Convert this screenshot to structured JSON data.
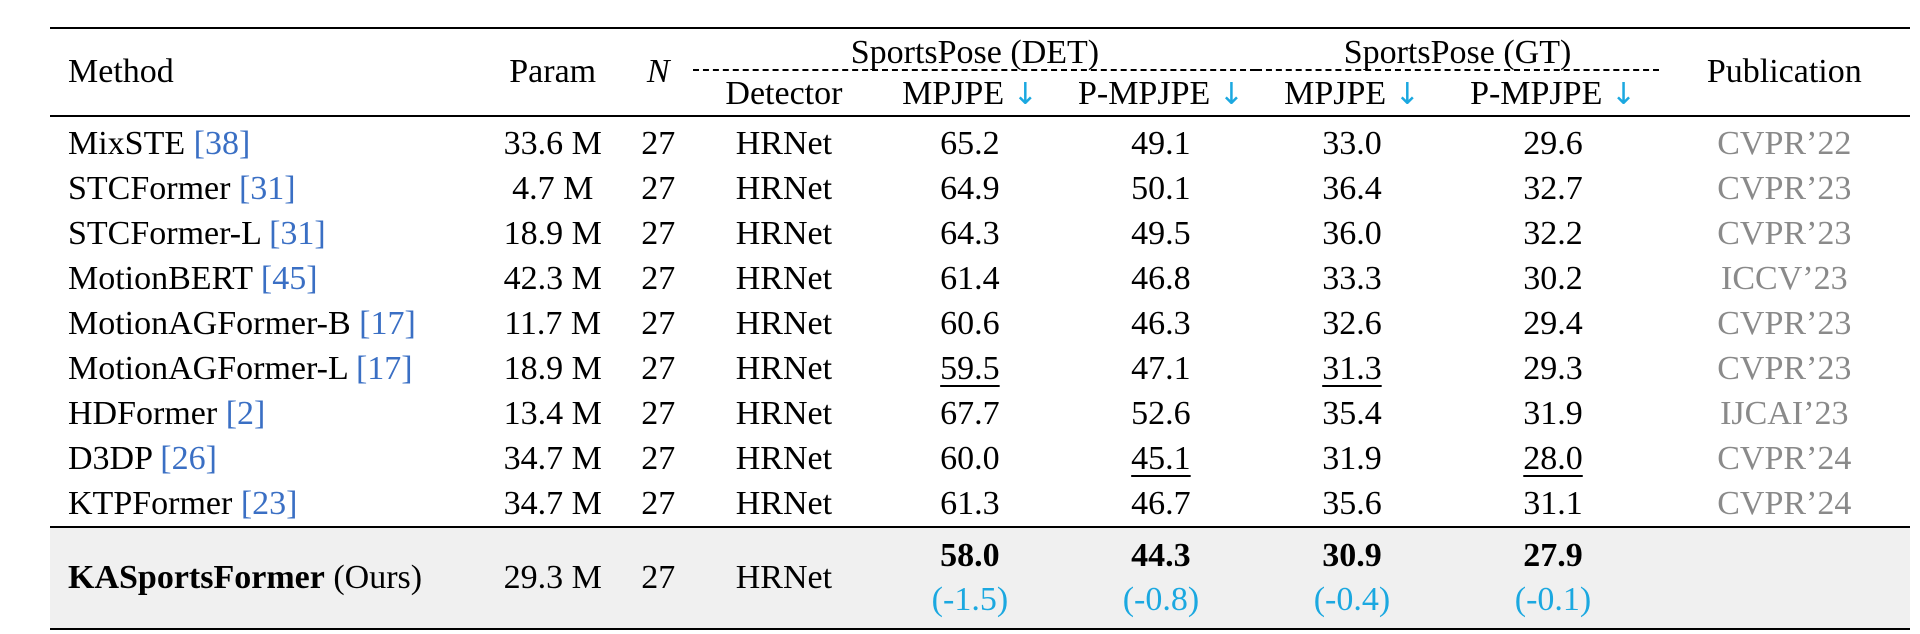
{
  "header": {
    "method": "Method",
    "param": "Param",
    "n": "N",
    "group_det": "SportsPose (DET)",
    "group_gt": "SportsPose (GT)",
    "publication": "Publication",
    "detector": "Detector",
    "mpjpe": "MPJPE",
    "pmpjpe": "P-MPJPE",
    "arrow": "↓"
  },
  "rows": [
    {
      "name": "MixSTE ",
      "ref": "[38]",
      "param": "33.6 M",
      "n": "27",
      "detector": "HRNet",
      "det_mpjpe": "65.2",
      "det_pmpjpe": "49.1",
      "gt_mpjpe": "33.0",
      "gt_pmpjpe": "29.6",
      "pub": "CVPR’22"
    },
    {
      "name": "STCFormer ",
      "ref": "[31]",
      "param": "4.7 M",
      "n": "27",
      "detector": "HRNet",
      "det_mpjpe": "64.9",
      "det_pmpjpe": "50.1",
      "gt_mpjpe": "36.4",
      "gt_pmpjpe": "32.7",
      "pub": "CVPR’23"
    },
    {
      "name": "STCFormer-L ",
      "ref": "[31]",
      "param": "18.9 M",
      "n": "27",
      "detector": "HRNet",
      "det_mpjpe": "64.3",
      "det_pmpjpe": "49.5",
      "gt_mpjpe": "36.0",
      "gt_pmpjpe": "32.2",
      "pub": "CVPR’23"
    },
    {
      "name": "MotionBERT ",
      "ref": "[45]",
      "param": "42.3 M",
      "n": "27",
      "detector": "HRNet",
      "det_mpjpe": "61.4",
      "det_pmpjpe": "46.8",
      "gt_mpjpe": "33.3",
      "gt_pmpjpe": "30.2",
      "pub": "ICCV’23"
    },
    {
      "name": "MotionAGFormer-B ",
      "ref": "[17]",
      "param": "11.7 M",
      "n": "27",
      "detector": "HRNet",
      "det_mpjpe": "60.6",
      "det_pmpjpe": "46.3",
      "gt_mpjpe": "32.6",
      "gt_pmpjpe": "29.4",
      "pub": "CVPR’23"
    },
    {
      "name": "MotionAGFormer-L ",
      "ref": "[17]",
      "param": "18.9 M",
      "n": "27",
      "detector": "HRNet",
      "det_mpjpe": "59.5",
      "det_pmpjpe": "47.1",
      "gt_mpjpe": "31.3",
      "gt_pmpjpe": "29.3",
      "pub": "CVPR’23"
    },
    {
      "name": "HDFormer ",
      "ref": "[2]",
      "param": "13.4 M",
      "n": "27",
      "detector": "HRNet",
      "det_mpjpe": "67.7",
      "det_pmpjpe": "52.6",
      "gt_mpjpe": "35.4",
      "gt_pmpjpe": "31.9",
      "pub": "IJCAI’23"
    },
    {
      "name": "D3DP ",
      "ref": "[26]",
      "param": "34.7 M",
      "n": "27",
      "detector": "HRNet",
      "det_mpjpe": "60.0",
      "det_pmpjpe": "45.1",
      "gt_mpjpe": "31.9",
      "gt_pmpjpe": "28.0",
      "pub": "CVPR’24"
    },
    {
      "name": "KTPFormer ",
      "ref": "[23]",
      "param": "34.7 M",
      "n": "27",
      "detector": "HRNet",
      "det_mpjpe": "61.3",
      "det_pmpjpe": "46.7",
      "gt_mpjpe": "35.6",
      "gt_pmpjpe": "31.1",
      "pub": "CVPR’24"
    }
  ],
  "ours": {
    "name": "KASportsFormer",
    "suffix": " (Ours)",
    "param": "29.3 M",
    "n": "27",
    "detector": "HRNet",
    "det_mpjpe": "58.0",
    "det_mpjpe_delta": "(-1.5)",
    "det_pmpjpe": "44.3",
    "det_pmpjpe_delta": "(-0.8)",
    "gt_mpjpe": "30.9",
    "gt_mpjpe_delta": "(-0.4)",
    "gt_pmpjpe": "27.9",
    "gt_pmpjpe_delta": "(-0.1)",
    "pub": ""
  },
  "colors": {
    "reference": "#3a6fc4",
    "publication": "#8a8a8a",
    "accent": "#1ba8e0",
    "ours_bg": "#f0f0f0"
  }
}
